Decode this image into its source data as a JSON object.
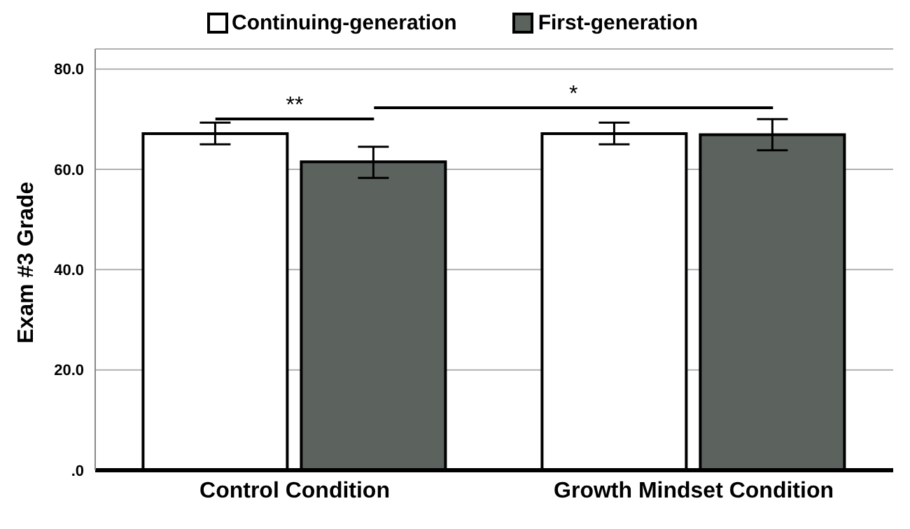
{
  "chart_data": {
    "type": "bar",
    "ylabel": "Exam #3 Grade",
    "categories": [
      "Control Condition",
      "Growth Mindset Condition"
    ],
    "series": [
      {
        "name": "Continuing-generation",
        "color": "#ffffff",
        "values": [
          67.1,
          67.1
        ],
        "errors": [
          [
            65.0,
            69.3
          ],
          [
            65.0,
            69.3
          ]
        ]
      },
      {
        "name": "First-generation",
        "color": "#5c635e",
        "values": [
          61.5,
          66.9
        ],
        "errors": [
          [
            58.3,
            64.5
          ],
          [
            63.8,
            70.0
          ]
        ]
      }
    ],
    "ylim": [
      0,
      84
    ],
    "yticks": [
      {
        "value": 0,
        "label": ".0"
      },
      {
        "value": 20,
        "label": "20.0"
      },
      {
        "value": 40,
        "label": "40.0"
      },
      {
        "value": 60,
        "label": "60.0"
      },
      {
        "value": 80,
        "label": "80.0"
      }
    ],
    "grid": "y",
    "legend": "top",
    "annotations": [
      "**",
      "*"
    ]
  }
}
